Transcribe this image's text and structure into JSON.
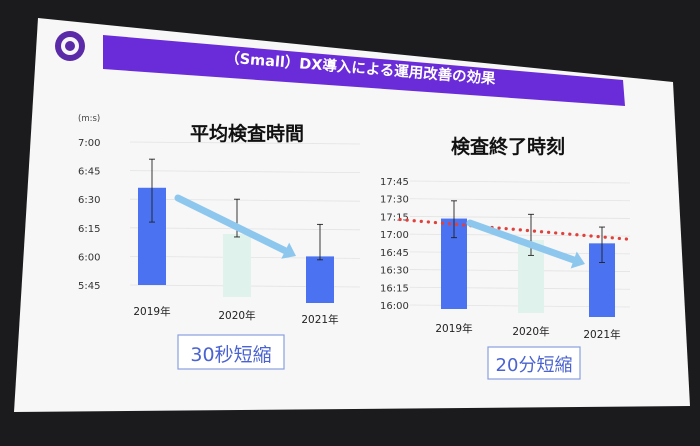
{
  "slide": {
    "title": "（Small）DX導入による運用改善の効果",
    "colors": {
      "title_bar": "#6a2bd9",
      "bar": "#4b72f0",
      "arrow": "#8ec7ee",
      "faint_bar": "#dff2ec",
      "dotted_line": "#e0413b",
      "callout_text": "#4a63d0",
      "slide_bg": "#f7f7f7"
    }
  },
  "chart_data": [
    {
      "type": "bar",
      "title": "平均検査時間",
      "unit_label": "(m:s)",
      "categories": [
        "2019年",
        "2020年",
        "2021年"
      ],
      "yticks": [
        "5:45",
        "6:00",
        "6:15",
        "6:30",
        "6:45",
        "7:00"
      ],
      "ylim_minutes": [
        5.75,
        7.0
      ],
      "values_minutes": [
        6.6,
        null,
        6.0
      ],
      "error_bars_minutes": [
        [
          6.3,
          6.85
        ],
        [
          6.17,
          6.5
        ],
        [
          5.97,
          6.28
        ]
      ],
      "trend": "decrease",
      "callout": "30秒短縮"
    },
    {
      "type": "bar",
      "title": "検査終了時刻",
      "categories": [
        "2019年",
        "2020年",
        "2021年"
      ],
      "yticks": [
        "16:00",
        "16:15",
        "16:30",
        "16:45",
        "17:00",
        "17:15",
        "17:30",
        "17:45"
      ],
      "ylim_hours": [
        16.0,
        17.75
      ],
      "values_hours": [
        17.22,
        null,
        16.87
      ],
      "error_bars_hours": [
        [
          16.95,
          17.47
        ],
        [
          16.7,
          17.28
        ],
        [
          16.6,
          17.1
        ]
      ],
      "reference_line_hours": 17.15,
      "trend": "decrease",
      "callout": "20分短縮"
    }
  ]
}
